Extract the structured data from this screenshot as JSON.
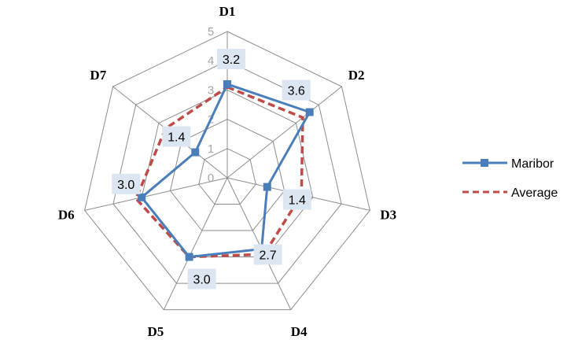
{
  "chart_data": {
    "type": "radar",
    "categories": [
      "D1",
      "D2",
      "D3",
      "D4",
      "D5",
      "D6",
      "D7"
    ],
    "series": [
      {
        "name": "Maribor",
        "values": [
          3.2,
          3.6,
          1.4,
          2.7,
          3.0,
          3.0,
          1.4
        ],
        "color": "#4a7ebb",
        "style": "solid",
        "marker": "square"
      },
      {
        "name": "Average",
        "values": [
          3.1,
          3.3,
          2.6,
          2.9,
          3.0,
          3.2,
          2.7
        ],
        "color": "#be4b48",
        "style": "dashed",
        "marker": "none"
      }
    ],
    "rlim": [
      0,
      5
    ],
    "ticks": [
      "0",
      "1",
      "2",
      "3",
      "4",
      "5"
    ],
    "data_labels": [
      "3.2",
      "3.6",
      "1.4",
      "2.7",
      "3.0",
      "3.0",
      "1.4"
    ],
    "grid": true,
    "legend_position": "right"
  },
  "colors": {
    "grid": "#8c8c8c",
    "label_bg": "#dce6f2"
  }
}
